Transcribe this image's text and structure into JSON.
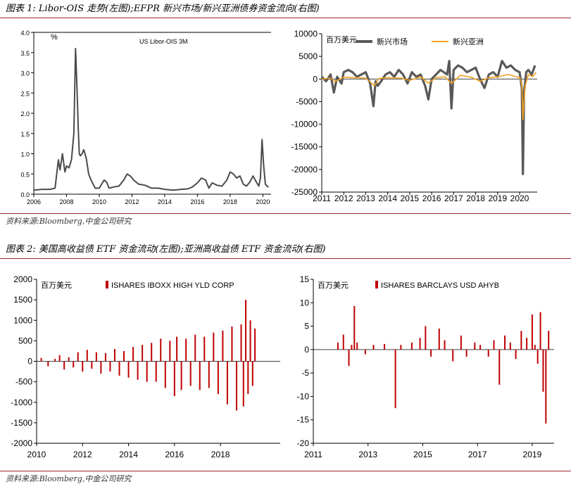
{
  "figure1": {
    "header": "图表 1: Libor-OIS 走势(左图);EFPR 新兴市场/新兴亚洲债券资金流向(右图)",
    "source": "资料来源:Bloomberg,中金公司研究"
  },
  "figure2": {
    "header": "图表 2: 美国高收益债 ETF 资金流动(左图);亚洲高收益债 ETF 资金流动(右图)",
    "source": "资料来源:Bloomberg,中金公司研究"
  },
  "chart_data": [
    {
      "type": "line",
      "title": "US Libor-OIS 3M",
      "ylabel": "%",
      "ylim": [
        0,
        4.0
      ],
      "yticks": [
        "0.0",
        "0.5",
        "1.0",
        "1.5",
        "2.0",
        "2.5",
        "3.0",
        "3.5",
        "4.0"
      ],
      "xlim": [
        2006,
        2020.5
      ],
      "xticks": [
        "2006",
        "2008",
        "2010",
        "2012",
        "2014",
        "2016",
        "2018",
        "2020"
      ],
      "color": "#4a4a4a",
      "series": [
        {
          "x": [
            2006.0,
            2006.5,
            2007.0,
            2007.3,
            2007.5,
            2007.6,
            2007.75,
            2007.9,
            2008.0,
            2008.15,
            2008.3,
            2008.45,
            2008.55,
            2008.65,
            2008.72,
            2008.78,
            2008.85,
            2008.95,
            2009.05,
            2009.2,
            2009.35,
            2009.5,
            2009.75,
            2010.0,
            2010.3,
            2010.45,
            2010.6,
            2010.9,
            2011.2,
            2011.5,
            2011.7,
            2011.9,
            2012.1,
            2012.4,
            2012.8,
            2013.2,
            2013.6,
            2014.0,
            2014.5,
            2015.0,
            2015.4,
            2015.7,
            2016.0,
            2016.25,
            2016.5,
            2016.7,
            2016.9,
            2017.2,
            2017.5,
            2017.8,
            2018.0,
            2018.2,
            2018.4,
            2018.6,
            2018.8,
            2019.0,
            2019.2,
            2019.4,
            2019.6,
            2019.75,
            2019.85,
            2019.95,
            2020.05,
            2020.15,
            2020.25,
            2020.35
          ],
          "y": [
            0.1,
            0.12,
            0.12,
            0.15,
            0.85,
            0.6,
            1.0,
            0.55,
            0.7,
            0.65,
            0.85,
            1.5,
            3.6,
            2.5,
            1.6,
            1.0,
            0.95,
            1.0,
            1.1,
            0.9,
            0.5,
            0.35,
            0.15,
            0.15,
            0.35,
            0.3,
            0.15,
            0.18,
            0.2,
            0.35,
            0.5,
            0.45,
            0.35,
            0.25,
            0.22,
            0.15,
            0.15,
            0.12,
            0.1,
            0.12,
            0.13,
            0.18,
            0.28,
            0.4,
            0.35,
            0.15,
            0.28,
            0.22,
            0.2,
            0.35,
            0.55,
            0.5,
            0.4,
            0.45,
            0.25,
            0.2,
            0.3,
            0.45,
            0.3,
            0.2,
            0.4,
            1.35,
            0.7,
            0.25,
            0.2,
            0.18
          ]
        }
      ]
    },
    {
      "type": "line",
      "title": "",
      "ylabel": "百万美元",
      "ylim": [
        -25000,
        10000
      ],
      "yticks": [
        "10000",
        "5000",
        "0",
        "-5000",
        "-10000",
        "-15000",
        "-20000",
        "-25000"
      ],
      "xlim": [
        2011,
        2020.8
      ],
      "xticks": [
        "2011",
        "2012",
        "2013",
        "2014",
        "2015",
        "2016",
        "2017",
        "2018",
        "2019",
        "2020"
      ],
      "legend_position": "top",
      "series": [
        {
          "name": "新兴市场",
          "color": "#595959",
          "x": [
            2011.0,
            2011.2,
            2011.4,
            2011.55,
            2011.7,
            2011.9,
            2012.0,
            2012.2,
            2012.4,
            2012.6,
            2012.8,
            2013.0,
            2013.2,
            2013.35,
            2013.45,
            2013.55,
            2013.7,
            2013.9,
            2014.1,
            2014.3,
            2014.5,
            2014.7,
            2014.9,
            2015.1,
            2015.3,
            2015.5,
            2015.7,
            2015.85,
            2016.0,
            2016.2,
            2016.4,
            2016.55,
            2016.7,
            2016.8,
            2016.9,
            2017.0,
            2017.2,
            2017.4,
            2017.6,
            2017.8,
            2018.0,
            2018.2,
            2018.4,
            2018.6,
            2018.8,
            2019.0,
            2019.2,
            2019.4,
            2019.6,
            2019.8,
            2020.0,
            2020.1,
            2020.15,
            2020.2,
            2020.3,
            2020.4,
            2020.55,
            2020.7
          ],
          "y": [
            500,
            -500,
            1000,
            -3000,
            500,
            -1000,
            1500,
            2000,
            1500,
            500,
            1000,
            1500,
            -1000,
            -6000,
            -500,
            -1500,
            -500,
            1000,
            1500,
            500,
            2000,
            1000,
            -1000,
            1500,
            500,
            1000,
            -1500,
            -4500,
            0,
            1000,
            2000,
            1500,
            1000,
            4000,
            -6500,
            2000,
            3000,
            2500,
            1500,
            2000,
            2500,
            0,
            -2000,
            1000,
            1500,
            500,
            4000,
            2500,
            3000,
            2000,
            1500,
            -2000,
            -21000,
            -3000,
            1500,
            2000,
            1000,
            3000
          ]
        },
        {
          "name": "新兴亚洲",
          "color": "#f0a020",
          "x": [
            2011.0,
            2011.4,
            2011.6,
            2012.0,
            2012.5,
            2013.0,
            2013.4,
            2013.6,
            2014.0,
            2014.6,
            2015.0,
            2015.5,
            2015.85,
            2016.2,
            2016.6,
            2016.9,
            2017.3,
            2017.8,
            2018.2,
            2018.6,
            2019.0,
            2019.5,
            2020.0,
            2020.1,
            2020.15,
            2020.25,
            2020.4,
            2020.6,
            2020.75
          ],
          "y": [
            0,
            200,
            -600,
            400,
            300,
            200,
            -1500,
            100,
            300,
            200,
            -300,
            500,
            -900,
            300,
            500,
            -1000,
            800,
            400,
            -500,
            300,
            500,
            1000,
            300,
            -1000,
            -9000,
            -1500,
            1000,
            500,
            1500
          ]
        }
      ]
    },
    {
      "type": "bar",
      "title": "",
      "ylabel": "百万美元",
      "ylim": [
        -2000,
        2000
      ],
      "yticks": [
        "2000",
        "1500",
        "1000",
        "500",
        "0",
        "-500",
        "-1000",
        "-1500",
        "-2000"
      ],
      "xlim": [
        2010,
        2020.6
      ],
      "xticks": [
        "2010",
        "2012",
        "2014",
        "2016",
        "2018"
      ],
      "color": "#c00000",
      "series": [
        {
          "name": "ISHARES IBOXX HIGH YLD CORP",
          "x": [
            2010.2,
            2010.5,
            2010.8,
            2011.0,
            2011.2,
            2011.4,
            2011.6,
            2011.8,
            2012.0,
            2012.2,
            2012.4,
            2012.6,
            2012.8,
            2013.0,
            2013.2,
            2013.4,
            2013.6,
            2013.8,
            2014.0,
            2014.2,
            2014.4,
            2014.6,
            2014.8,
            2015.0,
            2015.2,
            2015.4,
            2015.6,
            2015.8,
            2016.0,
            2016.1,
            2016.3,
            2016.5,
            2016.7,
            2016.9,
            2017.1,
            2017.3,
            2017.5,
            2017.7,
            2017.9,
            2018.1,
            2018.3,
            2018.5,
            2018.7,
            2018.9,
            2019.0,
            2019.1,
            2019.2,
            2019.3,
            2019.4,
            2019.5
          ],
          "y": [
            80,
            -120,
            60,
            150,
            -200,
            100,
            -150,
            220,
            -250,
            280,
            -180,
            220,
            -300,
            200,
            -250,
            300,
            -350,
            250,
            -400,
            350,
            -450,
            400,
            -500,
            450,
            -500,
            550,
            -650,
            500,
            -850,
            600,
            -700,
            550,
            -600,
            650,
            -700,
            600,
            -650,
            700,
            -800,
            750,
            -1050,
            850,
            -1200,
            900,
            -1100,
            1500,
            -800,
            1000,
            -600,
            800
          ]
        }
      ]
    },
    {
      "type": "bar",
      "title": "",
      "ylabel": "百万美元",
      "ylim": [
        -20,
        15
      ],
      "yticks": [
        "15",
        "10",
        "5",
        "0",
        "-5",
        "-10",
        "-15",
        "-20"
      ],
      "xlim": [
        2011,
        2019.8
      ],
      "xticks": [
        "2011",
        "2013",
        "2015",
        "2017",
        "2019"
      ],
      "color": "#c00000",
      "series": [
        {
          "name": "ISHARES BARCLAYS USD AHYB",
          "x": [
            2011.9,
            2012.1,
            2012.3,
            2012.4,
            2012.5,
            2012.6,
            2012.9,
            2013.2,
            2013.6,
            2014.0,
            2014.2,
            2014.6,
            2014.9,
            2015.1,
            2015.3,
            2015.6,
            2015.8,
            2016.1,
            2016.4,
            2016.6,
            2016.9,
            2017.1,
            2017.4,
            2017.6,
            2017.8,
            2018.0,
            2018.2,
            2018.4,
            2018.6,
            2018.8,
            2019.0,
            2019.1,
            2019.2,
            2019.3,
            2019.4,
            2019.5,
            2019.6
          ],
          "y": [
            1.5,
            3.2,
            -3.5,
            1.0,
            9.3,
            1.5,
            -1.0,
            1.0,
            1.2,
            -12.5,
            1.0,
            1.5,
            2.5,
            5.0,
            -1.5,
            4.5,
            2.0,
            -2.5,
            3.0,
            -1.5,
            1.5,
            1.0,
            -1.5,
            2.0,
            -7.5,
            3.0,
            1.5,
            -2.0,
            4.0,
            2.5,
            7.5,
            1.0,
            -3.0,
            8.0,
            -9.0,
            -15.8,
            4.0
          ]
        }
      ]
    }
  ]
}
